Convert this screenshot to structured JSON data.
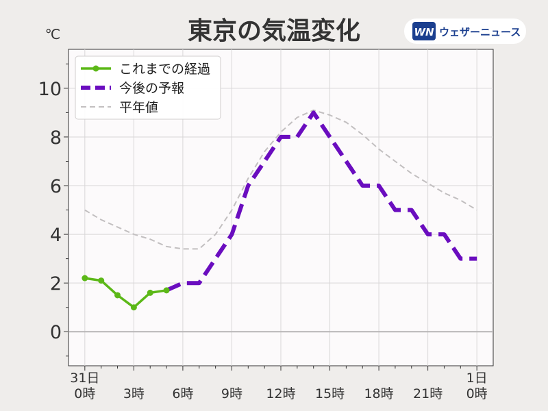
{
  "chart_data": {
    "type": "line",
    "title": "東京の気温変化",
    "unit": "℃",
    "ylim": [
      -1.4,
      11.6
    ],
    "yticks": [
      0,
      2,
      4,
      6,
      8,
      10
    ],
    "xlim": [
      -1,
      25
    ],
    "xticks": [
      {
        "x": 0,
        "lines": [
          "31日",
          "0時"
        ]
      },
      {
        "x": 3,
        "lines": [
          "",
          "3時"
        ]
      },
      {
        "x": 6,
        "lines": [
          "",
          "6時"
        ]
      },
      {
        "x": 9,
        "lines": [
          "",
          "9時"
        ]
      },
      {
        "x": 12,
        "lines": [
          "",
          "12時"
        ]
      },
      {
        "x": 15,
        "lines": [
          "",
          "15時"
        ]
      },
      {
        "x": 18,
        "lines": [
          "",
          "18時"
        ]
      },
      {
        "x": 21,
        "lines": [
          "",
          "21時"
        ]
      },
      {
        "x": 24,
        "lines": [
          "1日",
          "0時"
        ]
      }
    ],
    "grid": true,
    "legend_position": "top-left",
    "series": [
      {
        "name": "これまでの経過",
        "color": "#5cb818",
        "style": "solid-markers",
        "x": [
          0,
          1,
          2,
          3,
          4,
          5
        ],
        "values": [
          2.2,
          2.1,
          1.5,
          1.0,
          1.6,
          1.7
        ]
      },
      {
        "name": "今後の予報",
        "color": "#6a0dbf",
        "style": "dashed-thick",
        "x": [
          5,
          6,
          7,
          8,
          9,
          10,
          11,
          12,
          13,
          14,
          15,
          16,
          17,
          18,
          19,
          20,
          21,
          22,
          23,
          24
        ],
        "values": [
          1.7,
          2.0,
          2.0,
          3.0,
          4.0,
          6.0,
          7.0,
          8.0,
          8.0,
          9.0,
          8.0,
          7.0,
          6.0,
          6.0,
          5.0,
          5.0,
          4.0,
          4.0,
          3.0,
          3.0
        ]
      },
      {
        "name": "平年値",
        "color": "#c2bfc0",
        "style": "dashed-thin",
        "x": [
          0,
          1,
          2,
          3,
          4,
          5,
          6,
          7,
          8,
          9,
          10,
          11,
          12,
          13,
          14,
          15,
          16,
          17,
          18,
          19,
          20,
          21,
          22,
          23,
          24
        ],
        "values": [
          5.0,
          4.6,
          4.3,
          4.0,
          3.8,
          3.5,
          3.4,
          3.4,
          4.0,
          5.0,
          6.3,
          7.4,
          8.2,
          8.8,
          9.1,
          8.9,
          8.6,
          8.1,
          7.5,
          7.0,
          6.5,
          6.1,
          5.7,
          5.4,
          5.0
        ]
      }
    ]
  },
  "logo": {
    "mark": "WN",
    "text": "ウェザーニュース"
  }
}
